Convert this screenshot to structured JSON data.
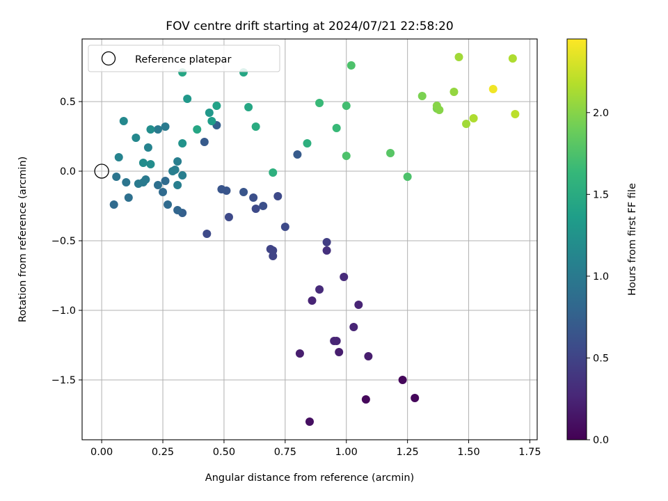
{
  "chart_data": {
    "type": "scatter",
    "title": "FOV centre drift starting at 2024/07/21 22:58:20",
    "xlabel": "Angular distance from reference (arcmin)",
    "ylabel": "Rotation from reference (arcmin)",
    "colorbar_label": "Hours from first FF file",
    "xlim": [
      -0.08,
      1.78
    ],
    "ylim": [
      -1.93,
      0.95
    ],
    "clim": [
      0,
      2.45
    ],
    "xticks": [
      {
        "v": 0,
        "label": "0.00"
      },
      {
        "v": 0.25,
        "label": "0.25"
      },
      {
        "v": 0.5,
        "label": "0.50"
      },
      {
        "v": 0.75,
        "label": "0.75"
      },
      {
        "v": 1.0,
        "label": "1.00"
      },
      {
        "v": 1.25,
        "label": "1.25"
      },
      {
        "v": 1.5,
        "label": "1.50"
      },
      {
        "v": 1.75,
        "label": "1.75"
      }
    ],
    "yticks": [
      {
        "v": 0.5,
        "label": "0.5"
      },
      {
        "v": 0,
        "label": "0.0"
      },
      {
        "v": -0.5,
        "label": "−0.5"
      },
      {
        "v": -1.0,
        "label": "−1.0"
      },
      {
        "v": -1.5,
        "label": "−1.5"
      }
    ],
    "cticks": [
      {
        "v": 0,
        "label": "0.0"
      },
      {
        "v": 0.5,
        "label": "0.5"
      },
      {
        "v": 1.0,
        "label": "1.0"
      },
      {
        "v": 1.5,
        "label": "1.5"
      },
      {
        "v": 2.0,
        "label": "2.0"
      }
    ],
    "grid": true,
    "legend": {
      "placement": "top-left",
      "label": "Reference platepar"
    },
    "reference_point": {
      "x": 0,
      "y": 0
    },
    "colormap_stops": [
      "#440154",
      "#482878",
      "#3e4989",
      "#31688e",
      "#26828e",
      "#1f9e89",
      "#35b779",
      "#6ece58",
      "#b5de2b",
      "#fde725"
    ],
    "points": [
      {
        "x": 0.85,
        "y": -1.8,
        "t": 0.1
      },
      {
        "x": 1.08,
        "y": -1.64,
        "t": 0.05
      },
      {
        "x": 1.28,
        "y": -1.63,
        "t": 0.05
      },
      {
        "x": 1.23,
        "y": -1.5,
        "t": 0.05
      },
      {
        "x": 0.81,
        "y": -1.31,
        "t": 0.2
      },
      {
        "x": 0.97,
        "y": -1.3,
        "t": 0.2
      },
      {
        "x": 1.09,
        "y": -1.33,
        "t": 0.2
      },
      {
        "x": 0.95,
        "y": -1.22,
        "t": 0.25
      },
      {
        "x": 0.96,
        "y": -1.22,
        "t": 0.25
      },
      {
        "x": 1.03,
        "y": -1.12,
        "t": 0.25
      },
      {
        "x": 1.05,
        "y": -0.96,
        "t": 0.25
      },
      {
        "x": 0.86,
        "y": -0.93,
        "t": 0.25
      },
      {
        "x": 0.89,
        "y": -0.85,
        "t": 0.3
      },
      {
        "x": 0.99,
        "y": -0.76,
        "t": 0.3
      },
      {
        "x": 0.92,
        "y": -0.57,
        "t": 0.35
      },
      {
        "x": 0.92,
        "y": -0.51,
        "t": 0.45
      },
      {
        "x": 0.69,
        "y": -0.56,
        "t": 0.5
      },
      {
        "x": 0.7,
        "y": -0.57,
        "t": 0.5
      },
      {
        "x": 0.7,
        "y": -0.61,
        "t": 0.5
      },
      {
        "x": 0.43,
        "y": -0.45,
        "t": 0.55
      },
      {
        "x": 0.75,
        "y": -0.4,
        "t": 0.55
      },
      {
        "x": 0.72,
        "y": -0.18,
        "t": 0.55
      },
      {
        "x": 0.52,
        "y": -0.33,
        "t": 0.55
      },
      {
        "x": 0.63,
        "y": -0.27,
        "t": 0.55
      },
      {
        "x": 0.66,
        "y": -0.25,
        "t": 0.6
      },
      {
        "x": 0.62,
        "y": -0.19,
        "t": 0.6
      },
      {
        "x": 0.58,
        "y": -0.15,
        "t": 0.65
      },
      {
        "x": 0.51,
        "y": -0.14,
        "t": 0.65
      },
      {
        "x": 0.49,
        "y": -0.13,
        "t": 0.65
      },
      {
        "x": 0.8,
        "y": 0.12,
        "t": 0.7
      },
      {
        "x": 0.42,
        "y": 0.21,
        "t": 0.7
      },
      {
        "x": 0.47,
        "y": 0.33,
        "t": 0.75
      },
      {
        "x": 0.33,
        "y": -0.3,
        "t": 0.75
      },
      {
        "x": 0.31,
        "y": -0.28,
        "t": 0.8
      },
      {
        "x": 0.27,
        "y": -0.24,
        "t": 0.85
      },
      {
        "x": 0.25,
        "y": -0.15,
        "t": 0.85
      },
      {
        "x": 0.26,
        "y": -0.07,
        "t": 0.85
      },
      {
        "x": 0.23,
        "y": -0.1,
        "t": 0.9
      },
      {
        "x": 0.05,
        "y": -0.24,
        "t": 0.85
      },
      {
        "x": 0.11,
        "y": -0.19,
        "t": 0.9
      },
      {
        "x": 0.06,
        "y": -0.04,
        "t": 0.95
      },
      {
        "x": 0.1,
        "y": -0.08,
        "t": 0.95
      },
      {
        "x": 0.15,
        "y": -0.09,
        "t": 1.0
      },
      {
        "x": 0.17,
        "y": -0.08,
        "t": 1.0
      },
      {
        "x": 0.18,
        "y": -0.06,
        "t": 1.0
      },
      {
        "x": 0.31,
        "y": -0.1,
        "t": 1.05
      },
      {
        "x": 0.33,
        "y": -0.03,
        "t": 1.05
      },
      {
        "x": 0.29,
        "y": 0.0,
        "t": 1.05
      },
      {
        "x": 0.3,
        "y": 0.01,
        "t": 1.05
      },
      {
        "x": 0.31,
        "y": 0.07,
        "t": 1.05
      },
      {
        "x": 0.23,
        "y": 0.3,
        "t": 1.0
      },
      {
        "x": 0.26,
        "y": 0.32,
        "t": 1.0
      },
      {
        "x": 0.19,
        "y": 0.17,
        "t": 1.1
      },
      {
        "x": 0.07,
        "y": 0.1,
        "t": 1.1
      },
      {
        "x": 0.17,
        "y": 0.06,
        "t": 1.2
      },
      {
        "x": 0.2,
        "y": 0.05,
        "t": 1.2
      },
      {
        "x": 0.14,
        "y": 0.24,
        "t": 1.15
      },
      {
        "x": 0.09,
        "y": 0.36,
        "t": 1.15
      },
      {
        "x": 0.2,
        "y": 0.3,
        "t": 1.2
      },
      {
        "x": 0.33,
        "y": 0.2,
        "t": 1.25
      },
      {
        "x": 0.35,
        "y": 0.52,
        "t": 1.3
      },
      {
        "x": 0.44,
        "y": 0.42,
        "t": 1.3
      },
      {
        "x": 0.45,
        "y": 0.36,
        "t": 1.35
      },
      {
        "x": 0.47,
        "y": 0.47,
        "t": 1.4
      },
      {
        "x": 0.39,
        "y": 0.3,
        "t": 1.45
      },
      {
        "x": 0.33,
        "y": 0.71,
        "t": 1.45
      },
      {
        "x": 0.58,
        "y": 0.71,
        "t": 1.45
      },
      {
        "x": 0.6,
        "y": 0.46,
        "t": 1.45
      },
      {
        "x": 0.63,
        "y": 0.32,
        "t": 1.5
      },
      {
        "x": 0.7,
        "y": -0.01,
        "t": 1.55
      },
      {
        "x": 0.84,
        "y": 0.2,
        "t": 1.55
      },
      {
        "x": 0.89,
        "y": 0.49,
        "t": 1.65
      },
      {
        "x": 0.96,
        "y": 0.31,
        "t": 1.65
      },
      {
        "x": 1.0,
        "y": 0.47,
        "t": 1.7
      },
      {
        "x": 1.0,
        "y": 0.11,
        "t": 1.75
      },
      {
        "x": 1.02,
        "y": 0.76,
        "t": 1.75
      },
      {
        "x": 1.18,
        "y": 0.13,
        "t": 1.8
      },
      {
        "x": 1.25,
        "y": -0.04,
        "t": 1.75
      },
      {
        "x": 1.31,
        "y": 0.54,
        "t": 1.95
      },
      {
        "x": 1.37,
        "y": 0.45,
        "t": 1.95
      },
      {
        "x": 1.37,
        "y": 0.47,
        "t": 2.0
      },
      {
        "x": 1.38,
        "y": 0.44,
        "t": 2.0
      },
      {
        "x": 1.44,
        "y": 0.57,
        "t": 2.05
      },
      {
        "x": 1.46,
        "y": 0.82,
        "t": 2.1
      },
      {
        "x": 1.49,
        "y": 0.34,
        "t": 2.1
      },
      {
        "x": 1.52,
        "y": 0.38,
        "t": 2.15
      },
      {
        "x": 1.6,
        "y": 0.59,
        "t": 2.4
      },
      {
        "x": 1.68,
        "y": 0.81,
        "t": 2.15
      },
      {
        "x": 1.69,
        "y": 0.41,
        "t": 2.2
      }
    ]
  }
}
